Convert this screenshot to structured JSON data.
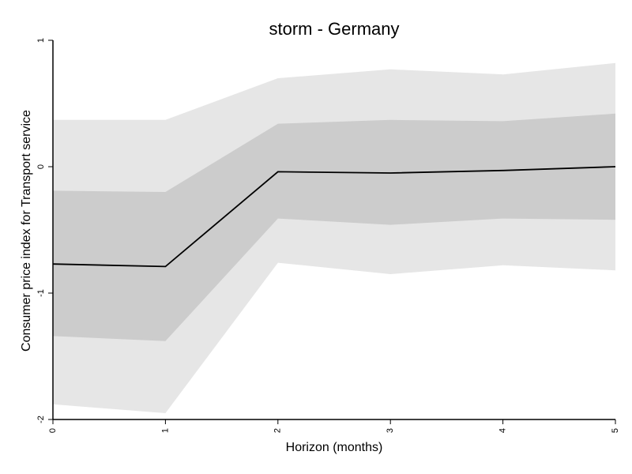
{
  "chart_data": {
    "type": "area",
    "title": "storm - Germany",
    "xlabel": "Horizon (months)",
    "ylabel": "Consumer price index for Transport service",
    "x": [
      0,
      1,
      2,
      3,
      4,
      5
    ],
    "xticks": [
      "0",
      "1",
      "2",
      "3",
      "4",
      "5"
    ],
    "yticks": [
      "1",
      "0",
      "-1",
      "-2"
    ],
    "xlim": [
      0,
      5
    ],
    "ylim": [
      -2,
      1
    ],
    "grid": false,
    "series": [
      {
        "role": "outer-band",
        "lower": [
          -1.88,
          -1.95,
          -0.76,
          -0.85,
          -0.78,
          -0.82
        ],
        "upper": [
          0.37,
          0.37,
          0.7,
          0.77,
          0.73,
          0.82
        ]
      },
      {
        "role": "inner-band",
        "lower": [
          -1.34,
          -1.38,
          -0.41,
          -0.46,
          -0.41,
          -0.42
        ],
        "upper": [
          -0.19,
          -0.2,
          0.34,
          0.37,
          0.36,
          0.42
        ]
      },
      {
        "role": "point-estimate",
        "values": [
          -0.77,
          -0.79,
          -0.04,
          -0.05,
          -0.03,
          0.0
        ]
      }
    ],
    "colors": {
      "outer_band": "#e6e6e6",
      "inner_band": "#cccccc",
      "line": "#000000"
    }
  }
}
